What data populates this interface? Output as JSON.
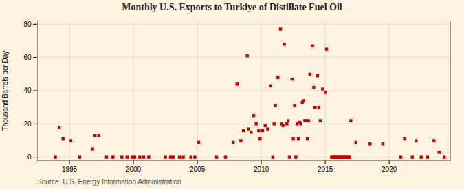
{
  "chart_data": {
    "type": "scatter",
    "title": "Monthly U.S. Exports to Turkiye of Distillate Fuel Oil",
    "ylabel": "Thousand Barrels per Day",
    "annotations": [
      "Source: U.S. Energy Information Administration"
    ],
    "color": "#cc0000",
    "marker": "square",
    "grid": true,
    "xlim": [
      1992.5,
      2024.8
    ],
    "ylim": [
      -2,
      82
    ],
    "xticks": [
      1995,
      2000,
      2005,
      2010,
      2015,
      2020
    ],
    "yticks": [
      0,
      20,
      40,
      60,
      80
    ],
    "x": [
      1993.9,
      1994.2,
      1994.5,
      1995.1,
      1995.8,
      1996.8,
      1997.0,
      1997.3,
      1997.9,
      1998.4,
      1999.1,
      1999.5,
      1999.9,
      2000.1,
      2000.5,
      2000.8,
      2001.2,
      2002.5,
      2002.9,
      2003.1,
      2003.6,
      2003.9,
      2004.5,
      2004.8,
      2005.1,
      2006.5,
      2007.2,
      2007.8,
      2008.1,
      2008.4,
      2008.6,
      2008.9,
      2009.0,
      2009.2,
      2009.4,
      2009.6,
      2009.8,
      2009.9,
      2010.1,
      2010.3,
      2010.5,
      2010.7,
      2010.9,
      2011.0,
      2011.1,
      2011.3,
      2011.5,
      2011.6,
      2011.7,
      2011.8,
      2012.0,
      2012.1,
      2012.2,
      2012.4,
      2012.5,
      2012.6,
      2012.7,
      2012.8,
      2012.9,
      2013.0,
      2013.1,
      2013.2,
      2013.3,
      2013.4,
      2013.5,
      2013.6,
      2013.7,
      2013.8,
      2014.0,
      2014.1,
      2014.2,
      2014.4,
      2014.5,
      2014.6,
      2014.8,
      2015.0,
      2015.1,
      2015.5,
      2015.6,
      2015.7,
      2015.8,
      2015.9,
      2016.0,
      2016.1,
      2016.2,
      2016.3,
      2016.4,
      2016.5,
      2016.6,
      2016.7,
      2016.8,
      2016.9,
      2017.0,
      2017.4,
      2018.5,
      2019.5,
      2020.9,
      2021.2,
      2021.8,
      2022.1,
      2022.5,
      2023.0,
      2023.5,
      2023.9,
      2024.3
    ],
    "values": [
      0,
      18,
      11,
      10,
      0,
      5,
      13,
      13,
      0,
      0,
      0,
      0,
      0,
      0,
      0,
      0,
      0,
      0,
      0,
      0,
      0,
      0,
      0,
      0,
      9,
      0,
      0,
      9,
      44,
      10,
      16,
      61,
      17,
      15,
      25,
      20,
      16,
      11,
      16,
      19,
      17,
      43,
      0,
      20,
      31,
      48,
      77,
      20,
      19,
      68,
      20,
      22,
      0,
      47,
      11,
      31,
      0,
      20,
      11,
      21,
      20,
      33,
      34,
      22,
      22,
      11,
      22,
      50,
      67,
      42,
      30,
      49,
      30,
      22,
      41,
      39,
      65,
      0,
      0,
      0,
      0,
      0,
      0,
      0,
      0,
      0,
      0,
      0,
      0,
      0,
      0,
      0,
      22,
      9,
      8,
      8,
      0,
      11,
      0,
      10,
      0,
      0,
      10,
      3,
      0
    ]
  }
}
